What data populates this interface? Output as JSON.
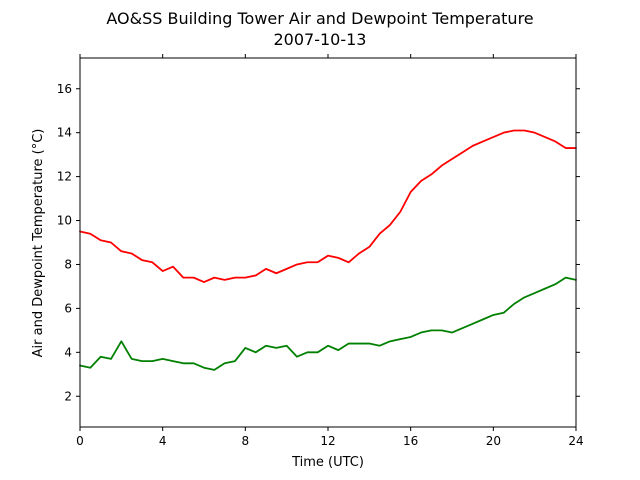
{
  "chart_data": {
    "type": "line",
    "title": "AO&SS Building Tower Air and Dewpoint Temperature",
    "subtitle": "2007-10-13",
    "xlabel": "Time (UTC)",
    "ylabel": "Air and Dewpoint Temperature (°C)",
    "xlim": [
      0,
      24
    ],
    "ylim": [
      0.6,
      17.4
    ],
    "xticks": [
      "0",
      "4",
      "8",
      "12",
      "16",
      "20",
      "24"
    ],
    "yticks": [
      "2",
      "4",
      "6",
      "8",
      "10",
      "12",
      "14",
      "16"
    ],
    "grid": false,
    "legend": "none",
    "x": [
      0,
      0.5,
      1,
      1.5,
      2,
      2.5,
      3,
      3.5,
      4,
      4.5,
      5,
      5.5,
      6,
      6.5,
      7,
      7.5,
      8,
      8.5,
      9,
      9.5,
      10,
      10.5,
      11,
      11.5,
      12,
      12.5,
      13,
      13.5,
      14,
      14.5,
      15,
      15.5,
      16,
      16.5,
      17,
      17.5,
      18,
      18.5,
      19,
      19.5,
      20,
      20.5,
      21,
      21.5,
      22,
      22.5,
      23,
      23.5,
      24
    ],
    "series": [
      {
        "color": "#ff0000",
        "values": [
          9.5,
          9.4,
          9.1,
          9.0,
          8.6,
          8.5,
          8.2,
          8.1,
          7.7,
          7.9,
          7.4,
          7.4,
          7.2,
          7.4,
          7.3,
          7.4,
          7.4,
          7.5,
          7.8,
          7.6,
          7.8,
          8.0,
          8.1,
          8.1,
          8.4,
          8.3,
          8.1,
          8.5,
          8.8,
          9.4,
          9.8,
          10.4,
          11.3,
          11.8,
          12.1,
          12.5,
          12.8,
          13.1,
          13.4,
          13.6,
          13.8,
          14.0,
          14.1,
          14.1,
          14.0,
          13.8,
          13.6,
          13.3,
          13.3
        ]
      },
      {
        "color": "#008000",
        "values": [
          3.4,
          3.3,
          3.8,
          3.7,
          4.5,
          3.7,
          3.6,
          3.6,
          3.7,
          3.6,
          3.5,
          3.5,
          3.3,
          3.2,
          3.5,
          3.6,
          4.2,
          4.0,
          4.3,
          4.2,
          4.3,
          3.8,
          4.0,
          4.0,
          4.3,
          4.1,
          4.4,
          4.4,
          4.4,
          4.3,
          4.5,
          4.6,
          4.7,
          4.9,
          5.0,
          5.0,
          4.9,
          5.1,
          5.3,
          5.5,
          5.7,
          5.8,
          6.2,
          6.5,
          6.7,
          6.9,
          7.1,
          7.4,
          7.3
        ]
      }
    ]
  }
}
